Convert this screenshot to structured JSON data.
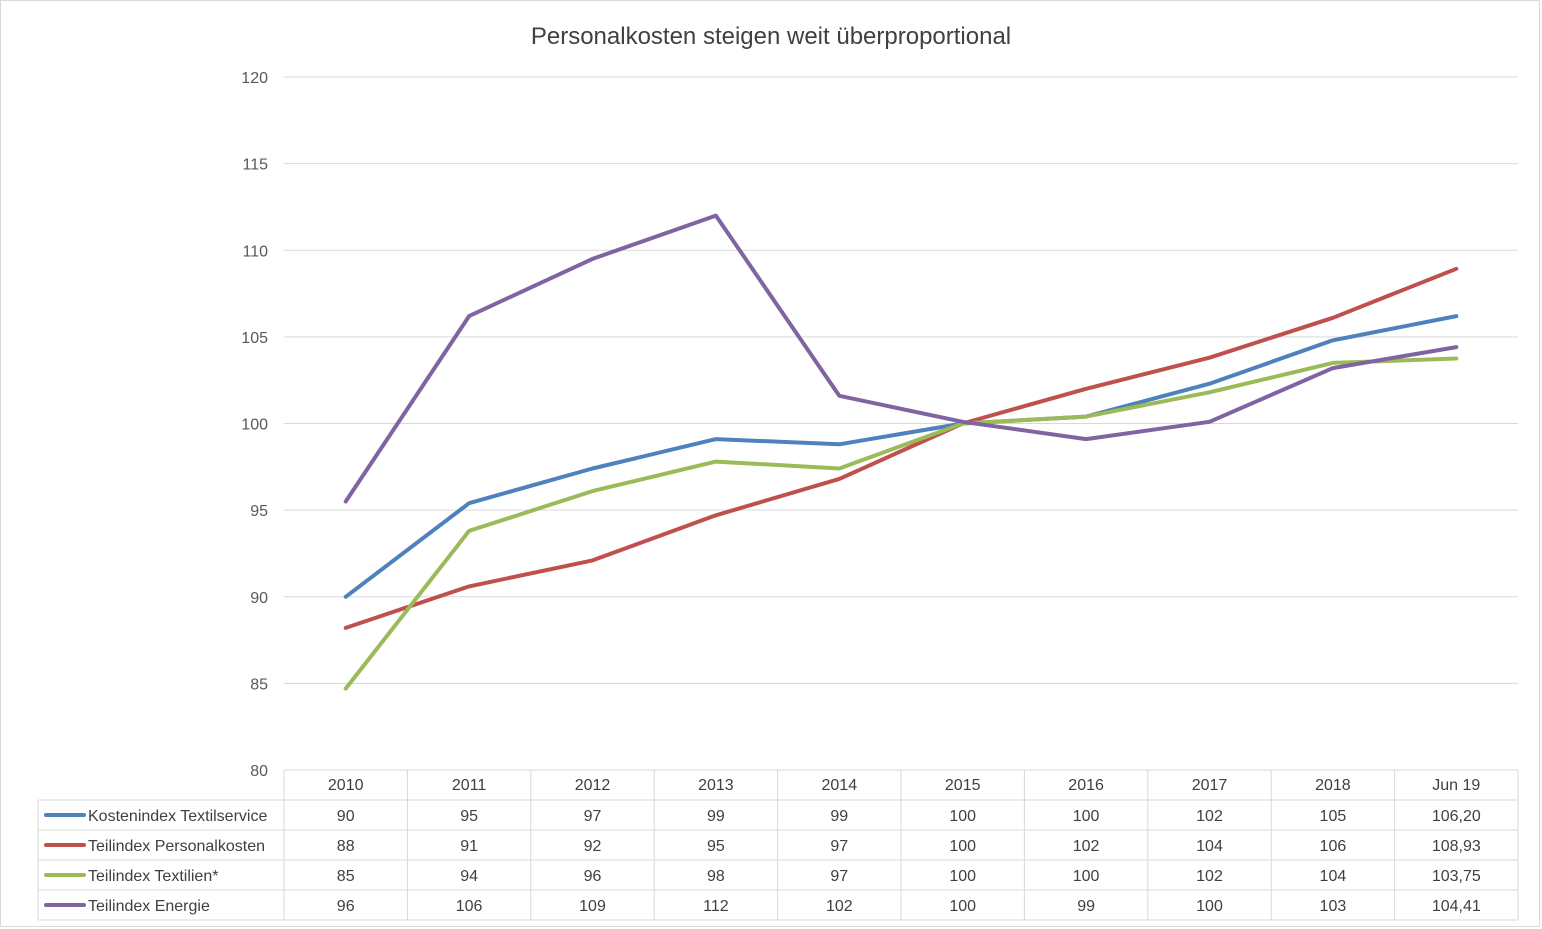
{
  "chart_data": {
    "type": "line",
    "title": "Personalkosten steigen weit überproportional",
    "ylim": [
      80,
      120
    ],
    "yticks": [
      80,
      85,
      90,
      95,
      100,
      105,
      110,
      115,
      120
    ],
    "grid": true,
    "legend": "data table below chart",
    "categories": [
      "2010",
      "2011",
      "2012",
      "2013",
      "2014",
      "2015",
      "2016",
      "2017",
      "2018",
      "Jun 19"
    ],
    "series": [
      {
        "name": "Kostenindex Textilservice",
        "color": "#4f81bd",
        "values": [
          90.0,
          95.4,
          97.4,
          99.1,
          98.8,
          100.0,
          100.4,
          102.3,
          104.8,
          106.2
        ],
        "labels": [
          "90",
          "95",
          "97",
          "99",
          "99",
          "100",
          "100",
          "102",
          "105",
          "106,20"
        ]
      },
      {
        "name": "Teilindex Personalkosten",
        "color": "#c0504d",
        "values": [
          88.2,
          90.6,
          92.1,
          94.7,
          96.8,
          100.0,
          102.0,
          103.8,
          106.1,
          108.93
        ],
        "labels": [
          "88",
          "91",
          "92",
          "95",
          "97",
          "100",
          "102",
          "104",
          "106",
          "108,93"
        ]
      },
      {
        "name": "Teilindex Textilien*",
        "color": "#9bbb59",
        "values": [
          84.7,
          93.8,
          96.1,
          97.8,
          97.4,
          100.0,
          100.4,
          101.8,
          103.5,
          103.75
        ],
        "labels": [
          "85",
          "94",
          "96",
          "98",
          "97",
          "100",
          "100",
          "102",
          "104",
          "103,75"
        ]
      },
      {
        "name": "Teilindex Energie",
        "color": "#8064a2",
        "values": [
          95.5,
          106.2,
          109.5,
          112.0,
          101.6,
          100.1,
          99.1,
          100.1,
          103.2,
          104.41
        ],
        "labels": [
          "96",
          "106",
          "109",
          "112",
          "102",
          "100",
          "99",
          "100",
          "103",
          "104,41"
        ]
      }
    ]
  }
}
